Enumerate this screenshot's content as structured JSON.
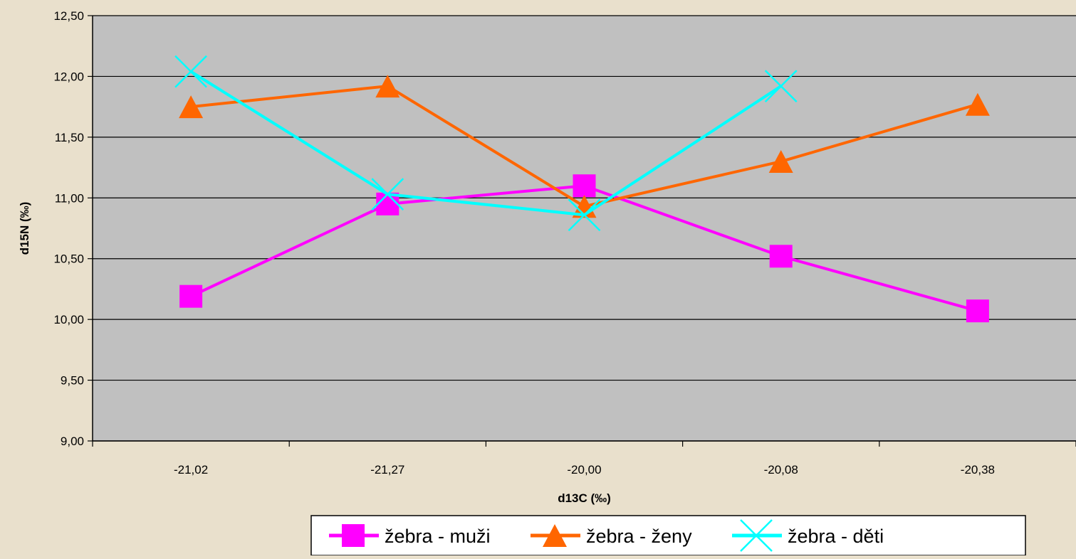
{
  "chart_data": {
    "type": "line",
    "title": "",
    "xlabel": "d13C (‰)",
    "ylabel": "d15N (‰)",
    "categories": [
      "-21,02",
      "-21,27",
      "-20,00",
      "-20,08",
      "-20,38"
    ],
    "ylim": [
      9.0,
      12.5
    ],
    "yticks": [
      9.0,
      9.5,
      10.0,
      10.5,
      11.0,
      11.5,
      12.0,
      12.5
    ],
    "ytick_labels": [
      "9,00",
      "9,50",
      "10,00",
      "10,50",
      "11,00",
      "11,50",
      "12,00",
      "12,50"
    ],
    "grid": true,
    "legend_position": "bottom-right",
    "series": [
      {
        "name": "žebra - muži",
        "values": [
          10.19,
          10.95,
          11.1,
          10.52,
          10.07
        ],
        "color": "#ff00ff",
        "marker": "square"
      },
      {
        "name": "žebra - ženy",
        "values": [
          11.75,
          11.92,
          10.93,
          11.3,
          11.77
        ],
        "color": "#ff6600",
        "marker": "triangle"
      },
      {
        "name": "žebra - děti",
        "values": [
          12.04,
          11.03,
          10.86,
          11.92,
          null
        ],
        "color": "#00ffff",
        "marker": "x"
      }
    ],
    "colors": {
      "page_background": "#e9e0cc",
      "plot_background": "#c0c0c0",
      "gridline": "#000000"
    }
  }
}
